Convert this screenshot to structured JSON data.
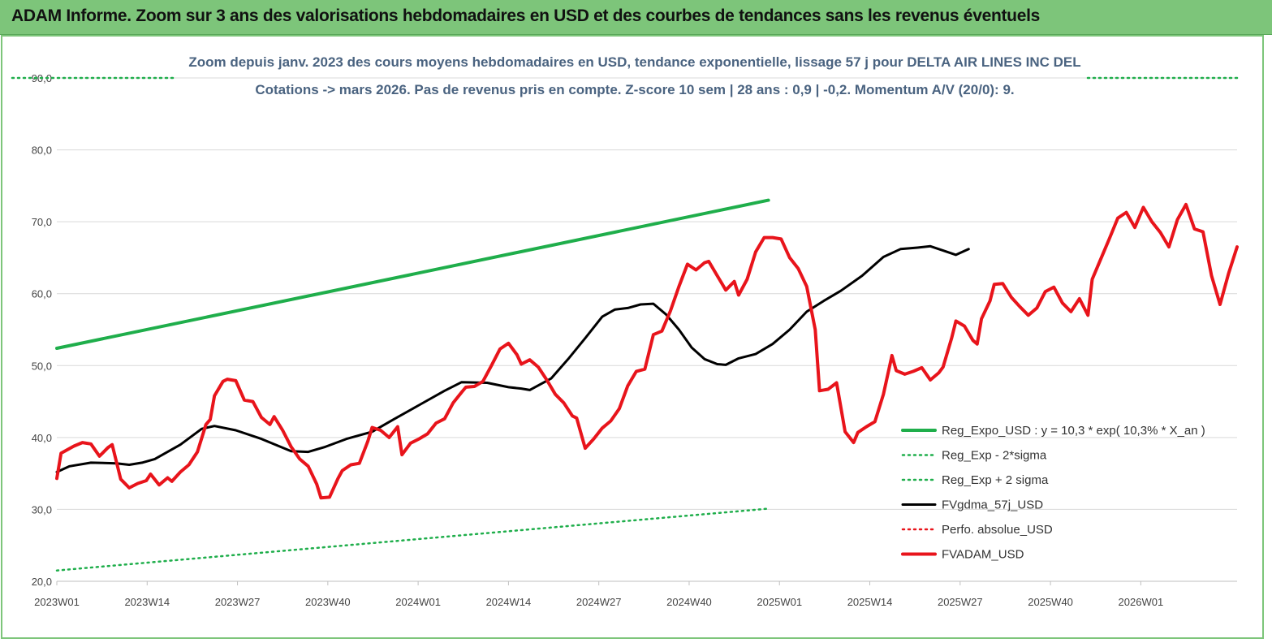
{
  "banner": {
    "title": "ADAM Informe. Zoom sur 3 ans des valorisations hebdomadaires en USD et des courbes de tendances sans les revenus éventuels"
  },
  "colors": {
    "banner": "#7dc57a",
    "regression": "#1fae4b",
    "sigma": "#1fae4b",
    "fvgdma": "#000000",
    "fvadam": "#e8141b",
    "perfo": "#e8141b"
  },
  "chart_data": {
    "type": "line",
    "title": "Zoom depuis janv. 2023 des cours moyens hebdomadaires en USD, tendance exponentielle, lissage 57 j pour DELTA AIR LINES INC DEL",
    "subtitle": "Cotations -> mars 2026. Pas de revenus pris en compte. Z-score 10 sem | 28 ans : 0,9 | -0,2. Momentum A/V (20/0): 9.",
    "xlabel": "",
    "ylabel": "",
    "ylim": [
      20,
      90
    ],
    "yticks": [
      "20,0",
      "30,0",
      "40,0",
      "50,0",
      "60,0",
      "70,0",
      "80,0",
      "90,0"
    ],
    "x_ticks": [
      "2023W01",
      "2023W14",
      "2023W27",
      "2023W40",
      "2024W01",
      "2024W14",
      "2024W27",
      "2024W40",
      "2025W01",
      "2025W14",
      "2025W27",
      "2025W40",
      "2026W01"
    ],
    "week_range": [
      1,
      168
    ],
    "grid": "horizontal",
    "legend_position": "bottom-right",
    "series": [
      {
        "name": "Reg_Expo_USD : y = 10,3 * exp( 10,3% * X_an )",
        "style": "solid-thick",
        "color": "#1fae4b",
        "points": [
          [
            1,
            52.4
          ],
          [
            168,
            73.0
          ]
        ]
      },
      {
        "name": "Reg_Exp - 2*sigma",
        "style": "dotted",
        "color": "#1fae4b",
        "points": [
          [
            1,
            21.5
          ],
          [
            168,
            30.1
          ]
        ]
      },
      {
        "name": "Reg_Exp + 2 sigma",
        "style": "dotted",
        "color": "#1fae4b",
        "points": [
          [
            1,
            90.0
          ],
          [
            168,
            90.0
          ]
        ]
      },
      {
        "name": "FVgdma_57j_USD",
        "style": "solid",
        "color": "#000000",
        "points": [
          [
            1,
            35.2
          ],
          [
            4,
            36.0
          ],
          [
            9,
            36.5
          ],
          [
            15,
            36.4
          ],
          [
            18,
            36.2
          ],
          [
            21,
            36.5
          ],
          [
            24,
            37.0
          ],
          [
            30,
            39.0
          ],
          [
            35,
            41.2
          ],
          [
            38,
            41.6
          ],
          [
            43,
            41.0
          ],
          [
            49,
            39.8
          ],
          [
            56,
            38.1
          ],
          [
            60,
            38.0
          ],
          [
            64,
            38.7
          ],
          [
            69,
            39.8
          ],
          [
            75,
            40.8
          ],
          [
            80,
            42.5
          ],
          [
            86,
            44.5
          ],
          [
            92,
            46.5
          ],
          [
            96,
            47.7
          ],
          [
            102,
            47.6
          ],
          [
            107,
            47.0
          ],
          [
            110,
            46.8
          ],
          [
            112,
            46.6
          ],
          [
            117,
            48.2
          ],
          [
            121,
            50.9
          ],
          [
            125,
            53.8
          ],
          [
            129,
            56.8
          ],
          [
            132,
            57.8
          ],
          [
            135,
            58.0
          ],
          [
            138,
            58.5
          ],
          [
            141,
            58.6
          ],
          [
            144,
            57.1
          ],
          [
            147,
            55.0
          ],
          [
            150,
            52.5
          ],
          [
            153,
            50.9
          ],
          [
            156,
            50.2
          ],
          [
            158,
            50.1
          ],
          [
            161,
            51.0
          ],
          [
            165,
            51.6
          ],
          [
            169,
            53.0
          ],
          [
            173,
            55.0
          ],
          [
            177,
            57.5
          ],
          [
            181,
            59.0
          ],
          [
            185,
            60.4
          ],
          [
            190,
            62.5
          ],
          [
            195,
            65.1
          ],
          [
            199,
            66.2
          ],
          [
            203,
            66.4
          ],
          [
            206,
            66.6
          ],
          [
            209,
            66.0
          ],
          [
            212,
            65.4
          ],
          [
            215,
            66.2
          ]
        ]
      },
      {
        "name": "Perfo. absolue_USD",
        "style": "dotted",
        "color": "#e8141b",
        "points": []
      },
      {
        "name": "FVADAM_USD",
        "style": "solid-thick",
        "color": "#e8141b",
        "points": [
          [
            1,
            34.3
          ],
          [
            2,
            37.8
          ],
          [
            5,
            38.8
          ],
          [
            7,
            39.3
          ],
          [
            9,
            39.1
          ],
          [
            11,
            37.4
          ],
          [
            13,
            38.6
          ],
          [
            14,
            39.0
          ],
          [
            16,
            34.2
          ],
          [
            18,
            33.0
          ],
          [
            20,
            33.6
          ],
          [
            22,
            34.0
          ],
          [
            23,
            34.9
          ],
          [
            25,
            33.4
          ],
          [
            27,
            34.4
          ],
          [
            28,
            33.9
          ],
          [
            30,
            35.2
          ],
          [
            32,
            36.2
          ],
          [
            34,
            38.0
          ],
          [
            36,
            41.8
          ],
          [
            37,
            42.5
          ],
          [
            38,
            45.8
          ],
          [
            40,
            47.8
          ],
          [
            41,
            48.1
          ],
          [
            43,
            47.9
          ],
          [
            45,
            45.2
          ],
          [
            47,
            45.0
          ],
          [
            49,
            42.8
          ],
          [
            51,
            41.8
          ],
          [
            52,
            42.9
          ],
          [
            54,
            41.0
          ],
          [
            56,
            38.7
          ],
          [
            58,
            37.0
          ],
          [
            60,
            36.0
          ],
          [
            62,
            33.5
          ],
          [
            63,
            31.6
          ],
          [
            65,
            31.7
          ],
          [
            67,
            34.3
          ],
          [
            68,
            35.4
          ],
          [
            70,
            36.2
          ],
          [
            72,
            36.4
          ],
          [
            74,
            39.5
          ],
          [
            75,
            41.4
          ],
          [
            77,
            41.0
          ],
          [
            79,
            40.0
          ],
          [
            81,
            41.5
          ],
          [
            82,
            37.6
          ],
          [
            84,
            39.2
          ],
          [
            86,
            39.8
          ],
          [
            88,
            40.5
          ],
          [
            90,
            42.0
          ],
          [
            92,
            42.6
          ],
          [
            94,
            44.8
          ],
          [
            96,
            46.3
          ],
          [
            97,
            47.0
          ],
          [
            99,
            47.1
          ],
          [
            101,
            47.8
          ],
          [
            103,
            50.0
          ],
          [
            105,
            52.3
          ],
          [
            107,
            53.1
          ],
          [
            109,
            51.5
          ],
          [
            110,
            50.2
          ],
          [
            112,
            50.8
          ],
          [
            114,
            49.8
          ],
          [
            116,
            48.0
          ],
          [
            118,
            46.0
          ],
          [
            120,
            44.8
          ],
          [
            122,
            43.0
          ],
          [
            123,
            42.7
          ],
          [
            125,
            38.5
          ],
          [
            127,
            39.8
          ],
          [
            129,
            41.3
          ],
          [
            131,
            42.3
          ],
          [
            133,
            44.0
          ],
          [
            135,
            47.2
          ],
          [
            137,
            49.2
          ],
          [
            139,
            49.5
          ],
          [
            141,
            54.3
          ],
          [
            143,
            54.8
          ],
          [
            145,
            57.6
          ],
          [
            147,
            61.0
          ],
          [
            149,
            64.1
          ],
          [
            151,
            63.3
          ],
          [
            153,
            64.3
          ],
          [
            154,
            64.5
          ],
          [
            156,
            62.5
          ],
          [
            158,
            60.5
          ],
          [
            160,
            61.7
          ],
          [
            161,
            59.8
          ],
          [
            163,
            62.0
          ],
          [
            165,
            65.8
          ],
          [
            167,
            67.8
          ],
          [
            169,
            67.8
          ],
          [
            171,
            67.6
          ],
          [
            173,
            65.0
          ],
          [
            175,
            63.5
          ],
          [
            177,
            61.0
          ],
          [
            179,
            55.0
          ],
          [
            180,
            46.5
          ],
          [
            182,
            46.7
          ],
          [
            184,
            47.6
          ],
          [
            186,
            40.8
          ],
          [
            188,
            39.3
          ],
          [
            189,
            40.7
          ],
          [
            191,
            41.5
          ],
          [
            193,
            42.2
          ],
          [
            195,
            46.0
          ],
          [
            197,
            51.4
          ],
          [
            198,
            49.3
          ],
          [
            200,
            48.8
          ],
          [
            202,
            49.2
          ],
          [
            204,
            49.7
          ],
          [
            206,
            48.0
          ],
          [
            208,
            49.0
          ],
          [
            209,
            49.8
          ],
          [
            211,
            53.8
          ],
          [
            212,
            56.2
          ],
          [
            214,
            55.5
          ],
          [
            216,
            53.5
          ],
          [
            217,
            53.0
          ],
          [
            218,
            56.5
          ],
          [
            220,
            59.0
          ],
          [
            221,
            61.3
          ],
          [
            223,
            61.4
          ],
          [
            225,
            59.5
          ],
          [
            227,
            58.2
          ],
          [
            229,
            57.0
          ],
          [
            231,
            58.0
          ],
          [
            233,
            60.3
          ],
          [
            235,
            60.9
          ],
          [
            237,
            58.7
          ],
          [
            239,
            57.5
          ],
          [
            241,
            59.3
          ],
          [
            243,
            57.0
          ],
          [
            244,
            62.0
          ],
          [
            246,
            64.8
          ],
          [
            248,
            67.6
          ],
          [
            250,
            70.5
          ],
          [
            252,
            71.3
          ],
          [
            254,
            69.2
          ],
          [
            256,
            72.0
          ],
          [
            258,
            70.0
          ],
          [
            260,
            68.5
          ],
          [
            262,
            66.5
          ],
          [
            264,
            70.3
          ],
          [
            266,
            72.4
          ],
          [
            268,
            69.0
          ],
          [
            270,
            68.6
          ],
          [
            272,
            62.5
          ],
          [
            274,
            58.5
          ],
          [
            276,
            62.8
          ],
          [
            278,
            66.5
          ]
        ]
      }
    ]
  }
}
